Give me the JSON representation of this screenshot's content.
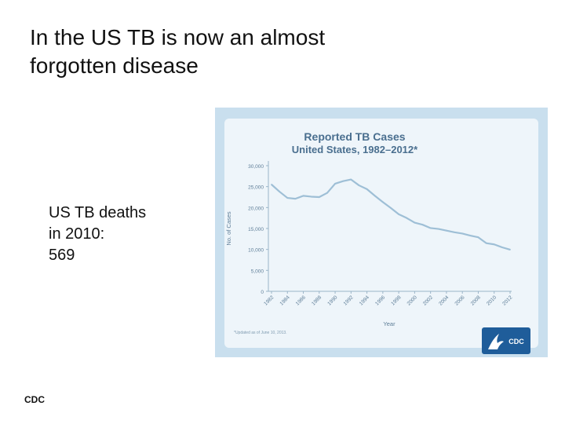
{
  "slide": {
    "title_lines": [
      "In the US TB is now an almost",
      "forgotten disease"
    ],
    "note_lines": [
      "US TB deaths",
      "in 2010:",
      "569"
    ],
    "footer_source": "CDC"
  },
  "chart_data": {
    "type": "line",
    "title": "Reported TB Cases",
    "subtitle": "United States, 1982–2012*",
    "xlabel": "Year",
    "ylabel": "No. of Cases",
    "ylim": [
      0,
      30000
    ],
    "y_ticks": [
      0,
      5000,
      10000,
      15000,
      20000,
      25000,
      30000
    ],
    "y_tick_labels": [
      "0",
      "5,000",
      "10,000",
      "15,000",
      "20,000",
      "25,000",
      "30,000"
    ],
    "x_ticks": [
      1982,
      1984,
      1986,
      1988,
      1990,
      1992,
      1994,
      1996,
      1998,
      2000,
      2002,
      2004,
      2006,
      2008,
      2010,
      2012
    ],
    "footnote": "*Updated as of June 10, 2013.",
    "logo_text": "CDC",
    "grid": false,
    "line_color": "#9ebfd6",
    "series": [
      {
        "x": [
          1982,
          1983,
          1984,
          1985,
          1986,
          1987,
          1988,
          1989,
          1990,
          1991,
          1992,
          1993,
          1994,
          1995,
          1996,
          1997,
          1998,
          1999,
          2000,
          2001,
          2002,
          2003,
          2004,
          2005,
          2006,
          2007,
          2008,
          2009,
          2010,
          2011,
          2012
        ],
        "values": [
          25500,
          23800,
          22300,
          22100,
          22800,
          22600,
          22500,
          23500,
          25700,
          26300,
          26700,
          25300,
          24400,
          22800,
          21300,
          19900,
          18400,
          17500,
          16400,
          15900,
          15100,
          14900,
          14500,
          14100,
          13800,
          13300,
          12900,
          11500,
          11200,
          10500,
          9950
        ]
      }
    ]
  }
}
